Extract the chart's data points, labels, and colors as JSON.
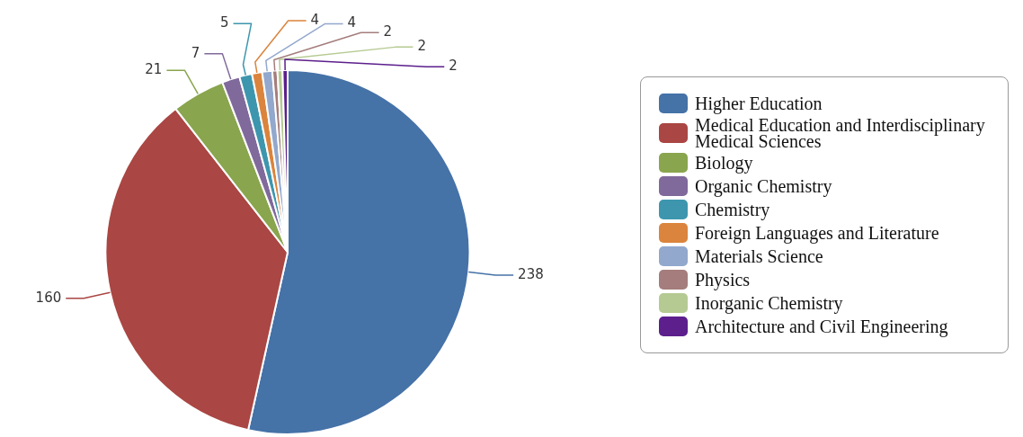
{
  "chart_data": {
    "type": "pie",
    "categories": [
      "Higher Education",
      "Medical Education and Interdisciplinary Medical Sciences",
      "Biology",
      "Organic Chemistry",
      "Chemistry",
      "Foreign Languages and Literature",
      "Materials Science",
      "Physics",
      "Inorganic Chemistry",
      "Architecture and Civil Engineering"
    ],
    "values": [
      238,
      160,
      21,
      7,
      5,
      4,
      4,
      2,
      2,
      2
    ],
    "colors": [
      "#4572a7",
      "#aa4643",
      "#89a54e",
      "#80699b",
      "#3d96ae",
      "#db843d",
      "#92a8cd",
      "#a47d7c",
      "#b5ca92",
      "#5c1f8c"
    ],
    "data_labels": true,
    "legend": "right"
  }
}
